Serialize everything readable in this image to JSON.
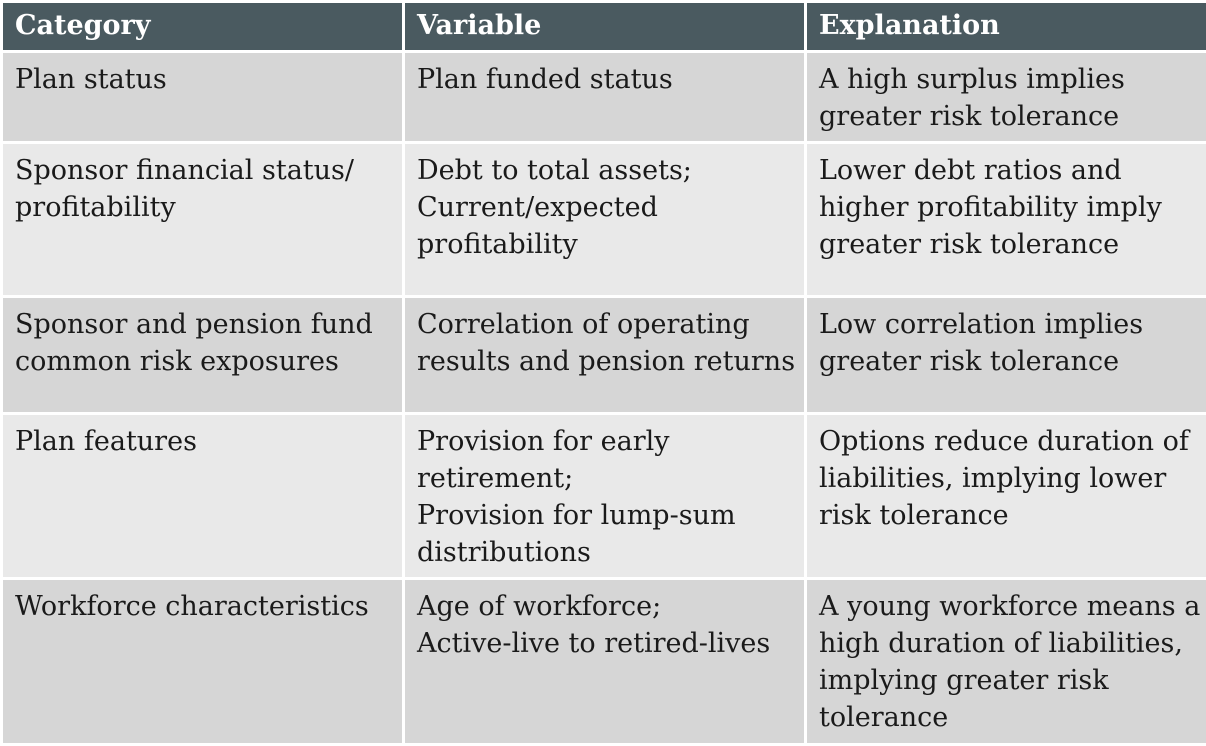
{
  "table": {
    "headers": [
      "Category",
      "Variable",
      "Explanation"
    ],
    "rows": [
      {
        "category": [
          "Plan status"
        ],
        "variable": [
          "Plan funded status"
        ],
        "explanation": [
          "A high surplus implies",
          "greater risk tolerance"
        ]
      },
      {
        "category": [
          "Sponsor financial status/",
          "profitability"
        ],
        "variable": [
          "Debt to total assets;",
          "Current/expected",
          "profitability"
        ],
        "explanation": [
          "Lower debt ratios and",
          "higher profitability imply",
          "greater risk tolerance"
        ]
      },
      {
        "category": [
          "Sponsor and pension fund",
          "common risk exposures"
        ],
        "variable": [
          "Correlation of operating",
          "results and pension returns"
        ],
        "explanation": [
          "Low correlation implies",
          "greater risk tolerance"
        ]
      },
      {
        "category": [
          "Plan features"
        ],
        "variable": [
          "Provision for early",
          "retirement;",
          "Provision for lump-sum",
          "distributions"
        ],
        "explanation": [
          "Options reduce duration of",
          "liabilities, implying lower",
          "risk tolerance"
        ]
      },
      {
        "category": [
          "Workforce characteristics"
        ],
        "variable": [
          "Age of workforce;",
          "Active-live to retired-lives"
        ],
        "explanation": [
          "A young workforce means a",
          "high duration of liabilities,",
          "implying  greater risk",
          "tolerance"
        ]
      }
    ]
  },
  "colors": {
    "header_bg": "#4a5a60",
    "header_text": "#ffffff",
    "row_bg_dark": "#d6d6d6",
    "row_bg_light": "#e9e9e9",
    "cell_text": "#1a1a1a"
  }
}
